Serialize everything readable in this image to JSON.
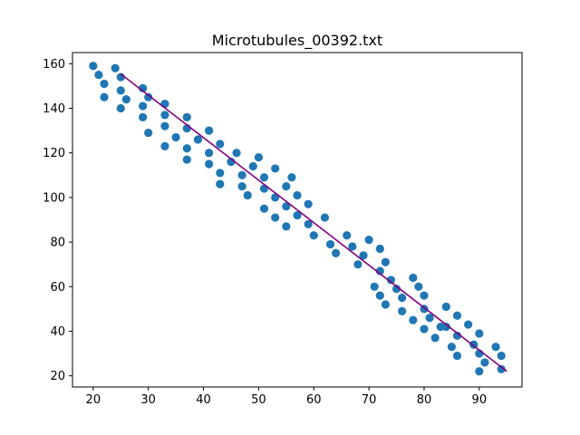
{
  "chart_data": {
    "type": "scatter",
    "title": "Microtubules_00392.txt",
    "xlabel": "",
    "ylabel": "",
    "xlim": [
      16.25,
      97.75
    ],
    "ylim": [
      15.0,
      165.0
    ],
    "xticks": [
      20,
      30,
      40,
      50,
      60,
      70,
      80,
      90
    ],
    "yticks": [
      20,
      40,
      60,
      80,
      100,
      120,
      140,
      160
    ],
    "grid": false,
    "legend": false,
    "colors": {
      "points": "#1f77b4",
      "fit_line": "#800080"
    },
    "series": [
      {
        "type": "scatter",
        "x": [
          20,
          21,
          22,
          22,
          24,
          25,
          25,
          25,
          26,
          29,
          29,
          29,
          30,
          30,
          33,
          33,
          33,
          33,
          35,
          37,
          37,
          37,
          37,
          39,
          41,
          41,
          41,
          43,
          43,
          43,
          45,
          46,
          47,
          47,
          48,
          49,
          50,
          51,
          51,
          51,
          53,
          53,
          53,
          55,
          55,
          55,
          56,
          57,
          57,
          59,
          59,
          60,
          62,
          63,
          64,
          66,
          67,
          68,
          69,
          70,
          71,
          72,
          72,
          72,
          73,
          73,
          74,
          75,
          76,
          76,
          78,
          78,
          79,
          80,
          80,
          80,
          81,
          82,
          83,
          84,
          84,
          85,
          86,
          86,
          86,
          88,
          89,
          90,
          90,
          90,
          91,
          93,
          94,
          94
        ],
        "y": [
          159,
          155,
          151,
          145,
          158,
          154,
          148,
          140,
          144,
          149,
          141,
          136,
          145,
          129,
          142,
          137,
          132,
          123,
          127,
          136,
          131,
          122,
          117,
          126,
          130,
          120,
          115,
          124,
          111,
          106,
          116,
          120,
          110,
          105,
          101,
          114,
          118,
          109,
          104,
          95,
          113,
          100,
          91,
          105,
          96,
          87,
          109,
          101,
          92,
          97,
          88,
          83,
          91,
          79,
          75,
          83,
          78,
          70,
          74,
          81,
          60,
          77,
          67,
          56,
          71,
          52,
          63,
          59,
          55,
          49,
          64,
          45,
          60,
          56,
          50,
          41,
          46,
          37,
          42,
          51,
          42,
          33,
          47,
          38,
          29,
          43,
          34,
          39,
          30,
          22,
          26,
          33,
          29,
          23
        ]
      },
      {
        "type": "line",
        "x": [
          25,
          95
        ],
        "y": [
          155.4,
          22.0
        ]
      }
    ]
  }
}
